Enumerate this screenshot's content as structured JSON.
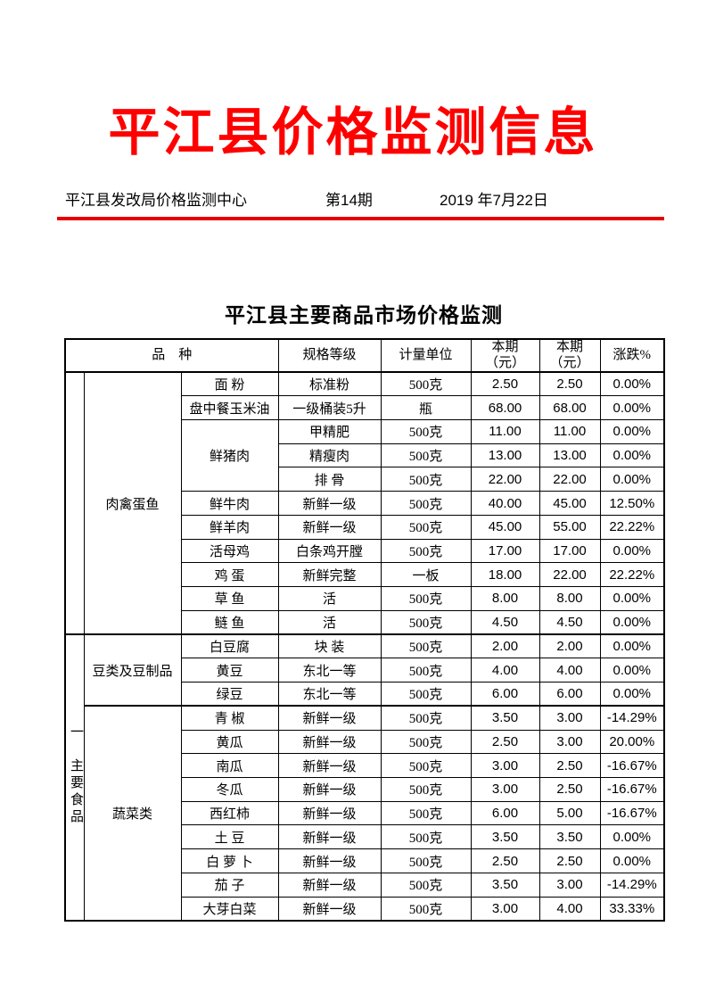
{
  "header": {
    "title": "平江县价格监测信息",
    "org": "平江县发改局价格监测中心",
    "issue": "第14期",
    "date": "2019 年7月22日"
  },
  "colors": {
    "title_red": "#ff0000",
    "rule_red": "#e60000"
  },
  "table": {
    "title": "平江县主要商品市场价格监测",
    "columns": [
      "品　种",
      "规格等级",
      "计量单位",
      "本期\n（元）",
      "本期\n（元）",
      "涨跌%"
    ],
    "category_column": [
      {
        "label": "",
        "rows": 11
      },
      {
        "label": "一　主要食品",
        "rows": 12
      }
    ],
    "group_column": [
      {
        "label": "肉禽蛋鱼",
        "rows": 11
      },
      {
        "label": "豆类及豆制品",
        "rows": 3
      },
      {
        "label": "蔬菜类",
        "rows": 9
      }
    ],
    "rows": [
      {
        "name": "面 粉",
        "spec": "标准粉",
        "unit": "500克",
        "price_a": "2.50",
        "price_b": "2.50",
        "change": "0.00%"
      },
      {
        "name": "盘中餐玉米油",
        "spec": "一级桶装5升",
        "unit": "瓶",
        "price_a": "68.00",
        "price_b": "68.00",
        "change": "0.00%"
      },
      {
        "name": "鲜猪肉",
        "name_rowspan": 3,
        "spec": "甲精肥",
        "unit": "500克",
        "price_a": "11.00",
        "price_b": "11.00",
        "change": "0.00%"
      },
      {
        "name": null,
        "spec": "精瘦肉",
        "unit": "500克",
        "price_a": "13.00",
        "price_b": "13.00",
        "change": "0.00%"
      },
      {
        "name": null,
        "spec": "排 骨",
        "unit": "500克",
        "price_a": "22.00",
        "price_b": "22.00",
        "change": "0.00%"
      },
      {
        "name": "鲜牛肉",
        "spec": "新鲜一级",
        "unit": "500克",
        "price_a": "40.00",
        "price_b": "45.00",
        "change": "12.50%"
      },
      {
        "name": "鲜羊肉",
        "spec": "新鲜一级",
        "unit": "500克",
        "price_a": "45.00",
        "price_b": "55.00",
        "change": "22.22%"
      },
      {
        "name": "活母鸡",
        "spec": "白条鸡开膛",
        "unit": "500克",
        "price_a": "17.00",
        "price_b": "17.00",
        "change": "0.00%"
      },
      {
        "name": "鸡 蛋",
        "spec": "新鲜完整",
        "unit": "一板",
        "price_a": "18.00",
        "price_b": "22.00",
        "change": "22.22%"
      },
      {
        "name": "草 鱼",
        "spec": "活",
        "unit": "500克",
        "price_a": "8.00",
        "price_b": "8.00",
        "change": "0.00%"
      },
      {
        "name": "鲢 鱼",
        "spec": "活",
        "unit": "500克",
        "price_a": "4.50",
        "price_b": "4.50",
        "change": "0.00%"
      },
      {
        "name": "白豆腐",
        "spec": "块 装",
        "unit": "500克",
        "price_a": "2.00",
        "price_b": "2.00",
        "change": "0.00%"
      },
      {
        "name": "黄豆",
        "spec": "东北一等",
        "unit": "500克",
        "price_a": "4.00",
        "price_b": "4.00",
        "change": "0.00%"
      },
      {
        "name": "绿豆",
        "spec": "东北一等",
        "unit": "500克",
        "price_a": "6.00",
        "price_b": "6.00",
        "change": "0.00%"
      },
      {
        "name": "青 椒",
        "spec": "新鲜一级",
        "unit": "500克",
        "price_a": "3.50",
        "price_b": "3.00",
        "change": "-14.29%"
      },
      {
        "name": "黄瓜",
        "spec": "新鲜一级",
        "unit": "500克",
        "price_a": "2.50",
        "price_b": "3.00",
        "change": "20.00%"
      },
      {
        "name": "南瓜",
        "spec": "新鲜一级",
        "unit": "500克",
        "price_a": "3.00",
        "price_b": "2.50",
        "change": "-16.67%"
      },
      {
        "name": "冬瓜",
        "spec": "新鲜一级",
        "unit": "500克",
        "price_a": "3.00",
        "price_b": "2.50",
        "change": "-16.67%"
      },
      {
        "name": "西红柿",
        "spec": "新鲜一级",
        "unit": "500克",
        "price_a": "6.00",
        "price_b": "5.00",
        "change": "-16.67%"
      },
      {
        "name": "土 豆",
        "spec": "新鲜一级",
        "unit": "500克",
        "price_a": "3.50",
        "price_b": "3.50",
        "change": "0.00%"
      },
      {
        "name": "白 萝 卜",
        "spec": "新鲜一级",
        "unit": "500克",
        "price_a": "2.50",
        "price_b": "2.50",
        "change": "0.00%"
      },
      {
        "name": "茄 子",
        "spec": "新鲜一级",
        "unit": "500克",
        "price_a": "3.50",
        "price_b": "3.00",
        "change": "-14.29%"
      },
      {
        "name": "大芽白菜",
        "spec": "新鲜一级",
        "unit": "500克",
        "price_a": "3.00",
        "price_b": "4.00",
        "change": "33.33%"
      }
    ]
  }
}
